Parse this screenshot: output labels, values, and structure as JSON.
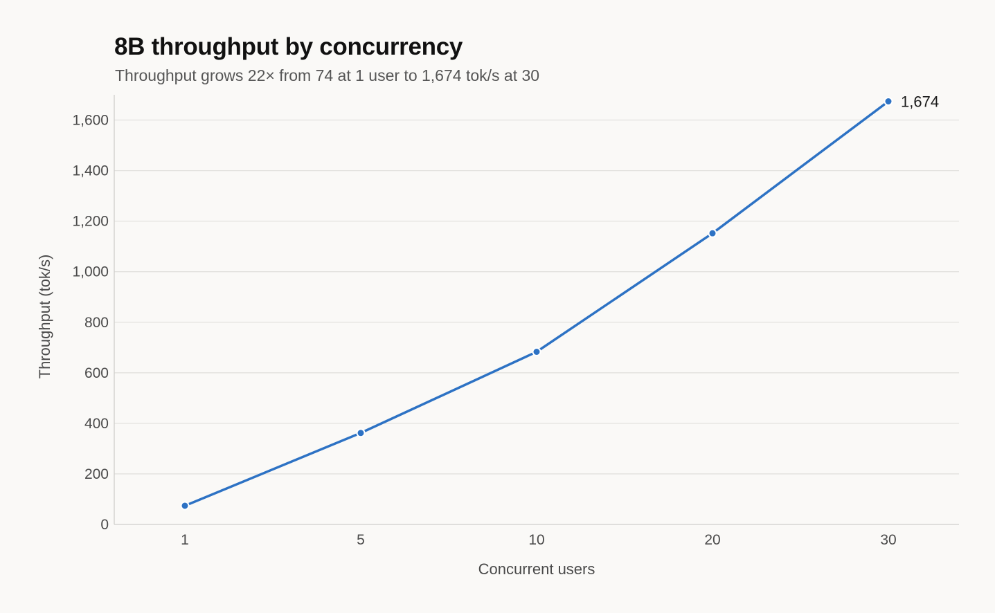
{
  "chart_data": {
    "type": "line",
    "title": "8B throughput by concurrency",
    "subtitle": "Throughput grows 22× from 74 at 1 user to 1,674 tok/s at 30",
    "xlabel": "Concurrent users",
    "ylabel": "Throughput (tok/s)",
    "categories": [
      "1",
      "5",
      "10",
      "20",
      "30"
    ],
    "series": [
      {
        "values": [
          74,
          362,
          683,
          1152,
          1674
        ]
      }
    ],
    "ylim": [
      0,
      1700
    ],
    "yticks": [
      0,
      200,
      400,
      600,
      800,
      1000,
      1200,
      1400,
      1600
    ],
    "ytick_labels": [
      "0",
      "200",
      "400",
      "600",
      "800",
      "1,000",
      "1,200",
      "1,400",
      "1,600"
    ],
    "data_labels": [
      {
        "index": 4,
        "text": "1,674"
      }
    ],
    "grid": "horizontal",
    "colors": {
      "line": "#2d72c4",
      "grid": "#e2e1de",
      "axis": "#cfcecb"
    }
  }
}
